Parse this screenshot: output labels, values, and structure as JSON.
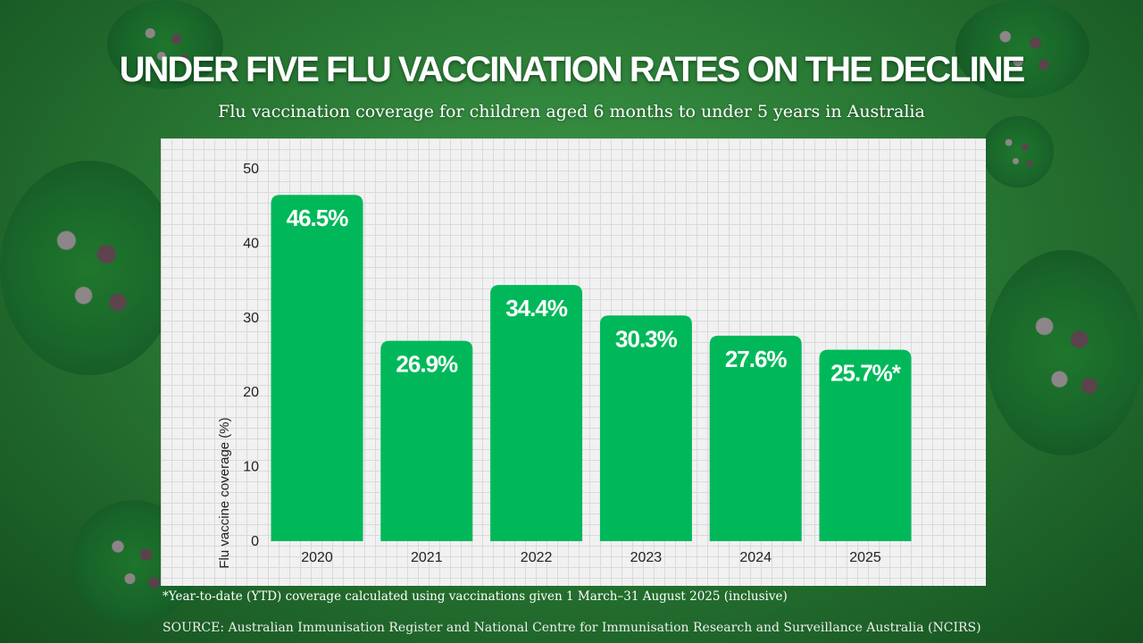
{
  "title": "UNDER FIVE FLU VACCINATION RATES ON THE DECLINE",
  "subtitle": "Flu vaccination coverage for children aged 6 months to under 5 years in Australia",
  "footnote": "*Year-to-date (YTD) coverage calculated using vaccinations given 1 March–31 August 2025 (inclusive)",
  "source": "SOURCE: Australian Immunisation Register and National Centre for Immunisation Research and Surveillance Australia (NCIRS)",
  "colors": {
    "bar": "#00b85a",
    "label": "#ffffff",
    "background": "#2a7a35"
  },
  "chart_data": {
    "type": "bar",
    "categories": [
      "2020",
      "2021",
      "2022",
      "2023",
      "2024",
      "2025"
    ],
    "values": [
      46.5,
      26.9,
      34.4,
      30.3,
      27.6,
      25.7
    ],
    "data_labels": [
      "46.5%",
      "26.9%",
      "34.4%",
      "30.3%",
      "27.6%",
      "25.7%*"
    ],
    "ylabel": "Flu vaccine coverage (%)",
    "xlabel": "",
    "ylim": [
      0,
      50
    ],
    "yticks": [
      "0",
      "10",
      "20",
      "30",
      "40",
      "50"
    ],
    "grid": false,
    "legend": "none"
  }
}
